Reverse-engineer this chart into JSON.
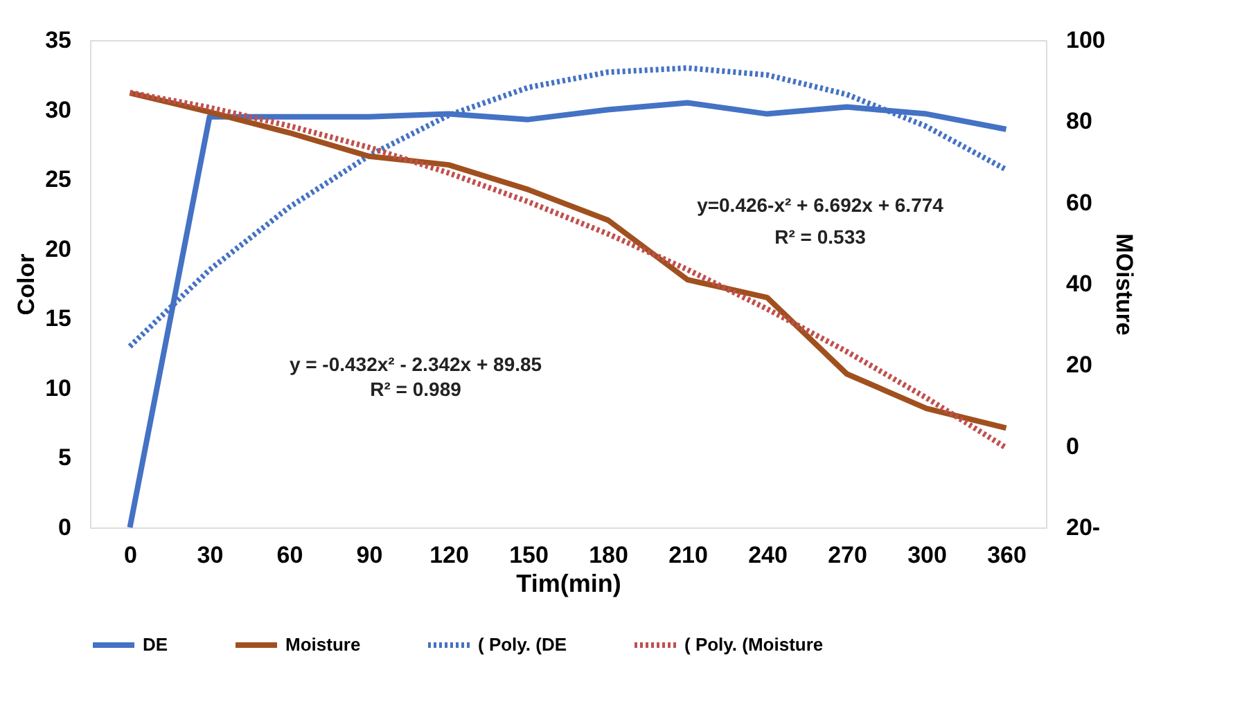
{
  "chart_data": {
    "type": "line",
    "xlabel": "Tim(min)",
    "ylabel": "Color",
    "y2label": "MOisture",
    "categories": [
      "0",
      "30",
      "60",
      "90",
      "120",
      "150",
      "180",
      "210",
      "240",
      "270",
      "300",
      "360"
    ],
    "series": [
      {
        "name": "DE",
        "color": "#4472c4",
        "line_style": "solid",
        "values": [
          0,
          29.5,
          29.5,
          29.5,
          29.7,
          29.3,
          30,
          30.5,
          29.7,
          30.2,
          29.7,
          28.6
        ]
      },
      {
        "name": "Moisture",
        "color": "#a0501e",
        "line_style": "solid",
        "axis": "y2",
        "values": [
          87,
          82.3,
          77.2,
          71.4,
          69.3,
          63.2,
          55.7,
          41,
          36.6,
          17.8,
          9.3,
          4.5
        ]
      },
      {
        "name": "( Poly. (DE",
        "color": "#4472c4",
        "line_style": "dotted",
        "values": [
          13.0,
          18.5,
          23.0,
          26.7,
          29.6,
          31.6,
          32.7,
          33.0,
          32.5,
          31.1,
          28.8,
          25.7
        ]
      },
      {
        "name": "( Poly. (Moisture",
        "color": "#c0504d",
        "line_style": "dotted",
        "axis": "y2",
        "values": [
          87.1,
          83.4,
          78.9,
          73.6,
          67.3,
          60.2,
          52.3,
          43.5,
          33.8,
          23.3,
          11.9,
          -0.4
        ]
      }
    ],
    "ylim": [
      0,
      35
    ],
    "yticks": [
      0,
      5,
      10,
      15,
      20,
      25,
      30,
      35
    ],
    "y2lim": [
      -20,
      100
    ],
    "y2ticks": [
      {
        "value": -20,
        "label": "20-"
      },
      0,
      20,
      40,
      60,
      80,
      100
    ],
    "annotations": [
      "y = -0.432x² - 2.342x + 89.85",
      "R² = 0.989",
      "y=0.426-x² + 6.692x + 6.774",
      "R² = 0.533"
    ],
    "legend": "bottom",
    "grid": false,
    "marker": "none"
  }
}
